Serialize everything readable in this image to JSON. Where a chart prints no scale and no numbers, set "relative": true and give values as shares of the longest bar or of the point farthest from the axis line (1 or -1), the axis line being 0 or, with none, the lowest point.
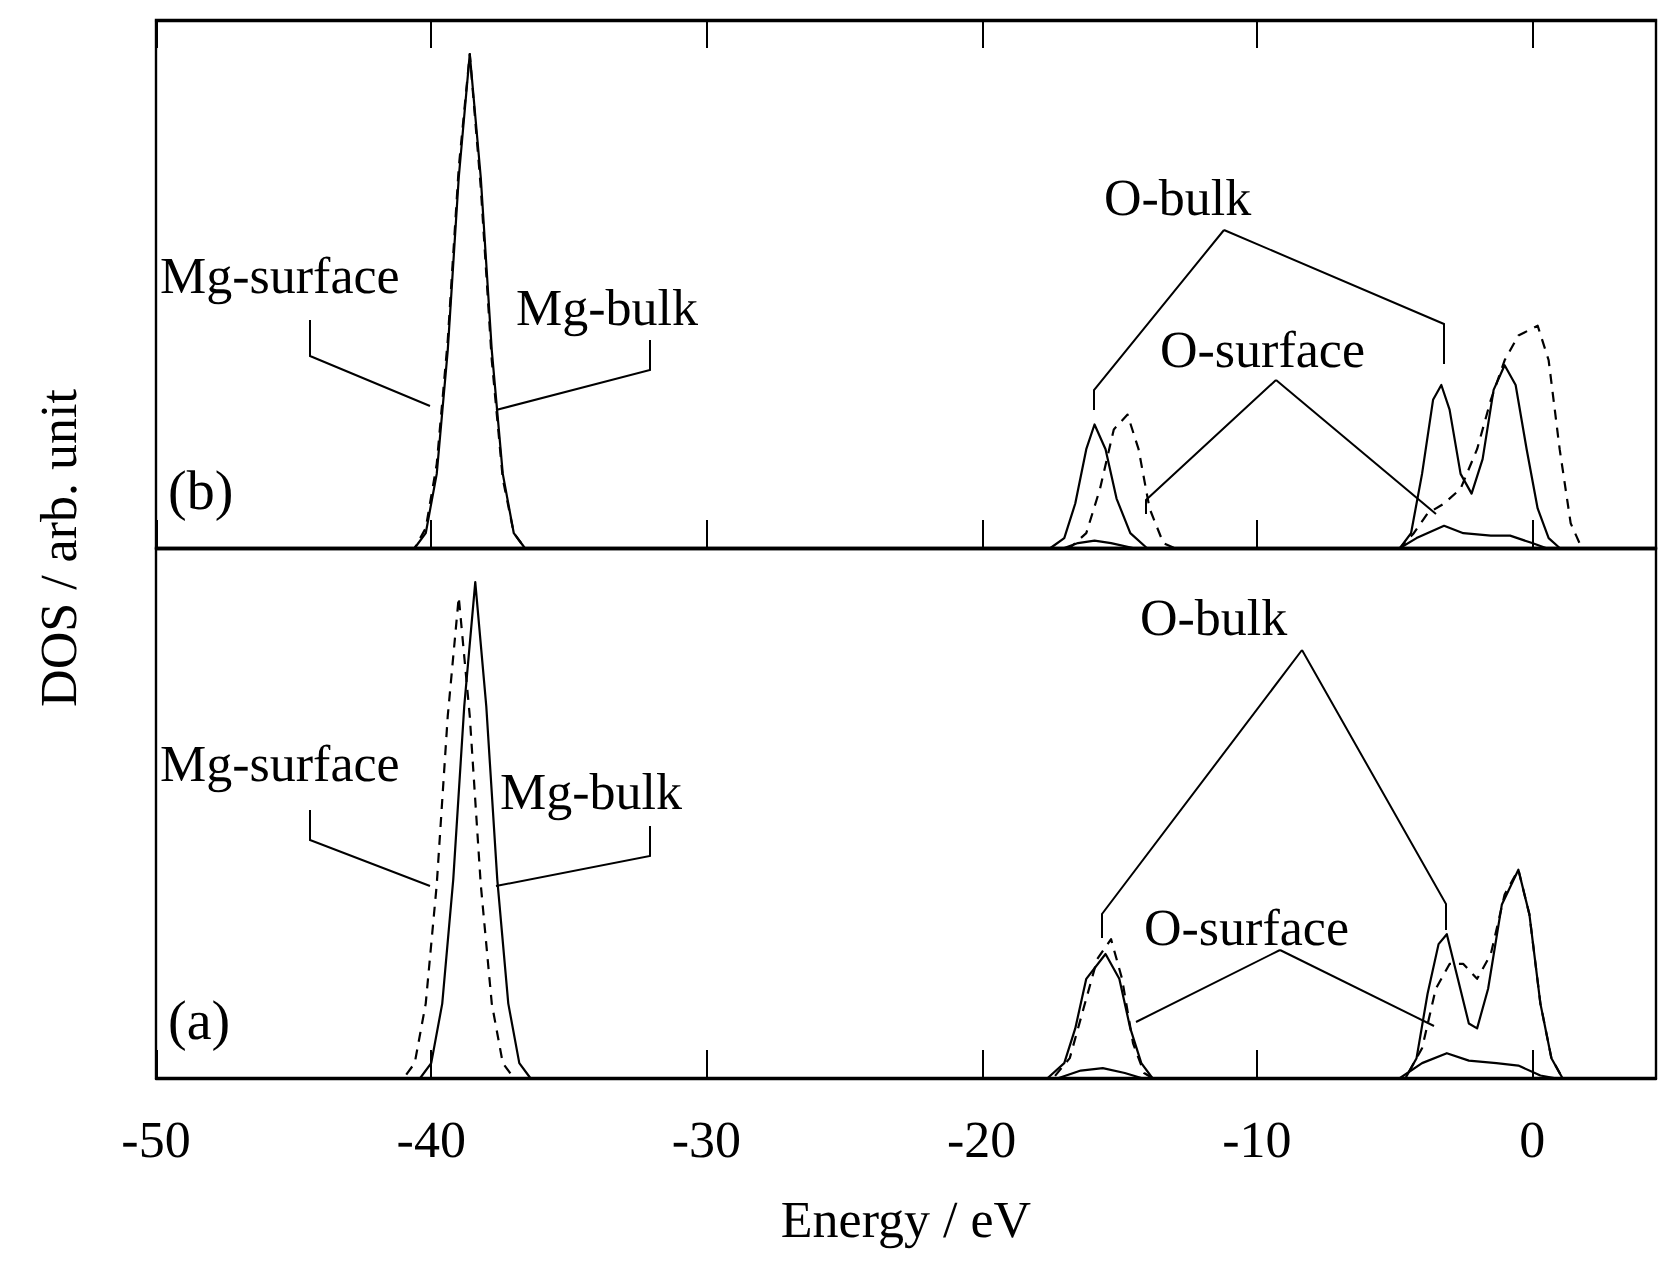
{
  "chart_data": [
    {
      "type": "line",
      "title": "(b)",
      "ylabel": "DOS / arb. unit",
      "relative": true,
      "xlim": [
        -50,
        4.5
      ],
      "xticks": [
        -50,
        -40,
        -30,
        -20,
        -10,
        0
      ],
      "tick_labels": false,
      "grid": false,
      "marker": "none",
      "annotations": [
        "Mg-surface",
        "Mg-bulk",
        "O-bulk",
        "O-surface"
      ],
      "series": [
        {
          "color": "#000000",
          "line_style": "solid",
          "x": [
            -50,
            -40.6,
            -40.2,
            -39.8,
            -39.4,
            -39.0,
            -38.6,
            -38.2,
            -37.8,
            -37.4,
            -37.0,
            -36.6,
            -17.5,
            -17.0,
            -16.6,
            -16.2,
            -15.9,
            -15.5,
            -15.1,
            -14.6,
            -14.0,
            -4.8,
            -4.4,
            -4.0,
            -3.6,
            -3.3,
            -3.0,
            -2.6,
            -2.2,
            -1.8,
            -1.4,
            -1.0,
            -0.6,
            -0.2,
            0.2,
            0.6,
            1.0,
            4.5
          ],
          "values": [
            0,
            0,
            0.03,
            0.15,
            0.4,
            0.75,
            1,
            0.75,
            0.4,
            0.15,
            0.03,
            0,
            0,
            0.02,
            0.09,
            0.2,
            0.25,
            0.2,
            0.1,
            0.03,
            0,
            0,
            0.03,
            0.15,
            0.3,
            0.33,
            0.28,
            0.15,
            0.11,
            0.18,
            0.32,
            0.37,
            0.33,
            0.2,
            0.08,
            0.02,
            0,
            0
          ]
        },
        {
          "color": "#000000",
          "line_style": "dashed",
          "x": [
            -50,
            -40.6,
            -40.2,
            -39.8,
            -39.4,
            -39.0,
            -38.6,
            -38.2,
            -37.8,
            -37.4,
            -37.0,
            -36.6,
            -16.8,
            -16.2,
            -15.7,
            -15.2,
            -14.7,
            -14.3,
            -13.9,
            -13.4,
            -13.0,
            -4.8,
            -4.3,
            -3.8,
            -3.2,
            -2.6,
            -2.0,
            -1.5,
            -1.0,
            -0.5,
            0.2,
            0.6,
            1.0,
            1.4,
            1.8,
            4.5
          ],
          "values": [
            0,
            0,
            0.04,
            0.17,
            0.42,
            0.77,
            1,
            0.73,
            0.38,
            0.14,
            0.03,
            0,
            0,
            0.03,
            0.12,
            0.24,
            0.27,
            0.2,
            0.08,
            0.01,
            0,
            0,
            0.03,
            0.07,
            0.09,
            0.12,
            0.2,
            0.3,
            0.38,
            0.43,
            0.45,
            0.38,
            0.2,
            0.05,
            0,
            0
          ]
        },
        {
          "color": "#000000",
          "line_style": "solid",
          "x": [
            -50,
            -17,
            -16.5,
            -15.9,
            -15.3,
            -14.5,
            -4.8,
            -4.2,
            -3.2,
            -2.5,
            -1.5,
            -0.8,
            0.0,
            0.5,
            4.5
          ],
          "values": [
            0,
            0,
            0.01,
            0.015,
            0.01,
            0,
            0,
            0.02,
            0.045,
            0.03,
            0.025,
            0.025,
            0.01,
            0,
            0
          ]
        }
      ]
    },
    {
      "type": "line",
      "title": "(a)",
      "xlabel": "Energy / eV",
      "relative": true,
      "xlim": [
        -50,
        4.5
      ],
      "xticks": [
        -50,
        -40,
        -30,
        -20,
        -10,
        0
      ],
      "tick_labels": "x",
      "grid": false,
      "marker": "none",
      "annotations": [
        "Mg-surface",
        "Mg-bulk",
        "O-bulk",
        "O-surface"
      ],
      "series": [
        {
          "color": "#000000",
          "line_style": "solid",
          "x": [
            -50,
            -40.4,
            -40.0,
            -39.6,
            -39.2,
            -38.8,
            -38.4,
            -38.0,
            -37.6,
            -37.2,
            -36.8,
            -36.4,
            -17.6,
            -17.0,
            -16.6,
            -16.2,
            -15.5,
            -15.0,
            -14.6,
            -14.2,
            -13.8,
            -4.6,
            -4.2,
            -3.8,
            -3.4,
            -3.1,
            -2.7,
            -2.3,
            -2.0,
            -1.6,
            -1.1,
            -0.5,
            -0.1,
            0.3,
            0.7,
            1.1,
            4.5
          ],
          "values": [
            0,
            0,
            0.03,
            0.15,
            0.4,
            0.75,
            1,
            0.75,
            0.4,
            0.15,
            0.03,
            0,
            0,
            0.03,
            0.1,
            0.2,
            0.25,
            0.2,
            0.1,
            0.03,
            0,
            0,
            0.04,
            0.17,
            0.27,
            0.29,
            0.2,
            0.11,
            0.1,
            0.18,
            0.35,
            0.42,
            0.33,
            0.15,
            0.04,
            0,
            0
          ]
        },
        {
          "color": "#000000",
          "line_style": "dashed",
          "x": [
            -50,
            -41.0,
            -40.6,
            -40.2,
            -39.8,
            -39.4,
            -39.0,
            -38.6,
            -38.2,
            -37.8,
            -37.4,
            -37.0,
            -17.4,
            -16.8,
            -16.3,
            -15.8,
            -15.3,
            -14.9,
            -14.5,
            -14.1,
            -13.8,
            -4.6,
            -4.0,
            -3.5,
            -3.0,
            -2.5,
            -2.0,
            -1.5,
            -1.0,
            -0.5,
            -0.1,
            0.3,
            0.7,
            1.1,
            4.5
          ],
          "values": [
            0,
            0,
            0.03,
            0.15,
            0.39,
            0.73,
            0.97,
            0.73,
            0.39,
            0.15,
            0.03,
            0,
            0,
            0.04,
            0.14,
            0.24,
            0.28,
            0.2,
            0.07,
            0.01,
            0,
            0,
            0.06,
            0.18,
            0.23,
            0.23,
            0.2,
            0.25,
            0.37,
            0.42,
            0.33,
            0.15,
            0.04,
            0,
            0
          ]
        },
        {
          "color": "#000000",
          "line_style": "solid",
          "x": [
            -50,
            -17.2,
            -16.4,
            -15.6,
            -14.8,
            -14.2,
            -4.8,
            -4.0,
            -3.1,
            -2.3,
            -1.3,
            -0.5,
            0.3,
            0.8,
            4.5
          ],
          "values": [
            0,
            0,
            0.015,
            0.02,
            0.01,
            0,
            0,
            0.03,
            0.05,
            0.035,
            0.03,
            0.025,
            0.005,
            0,
            0
          ]
        }
      ]
    }
  ]
}
